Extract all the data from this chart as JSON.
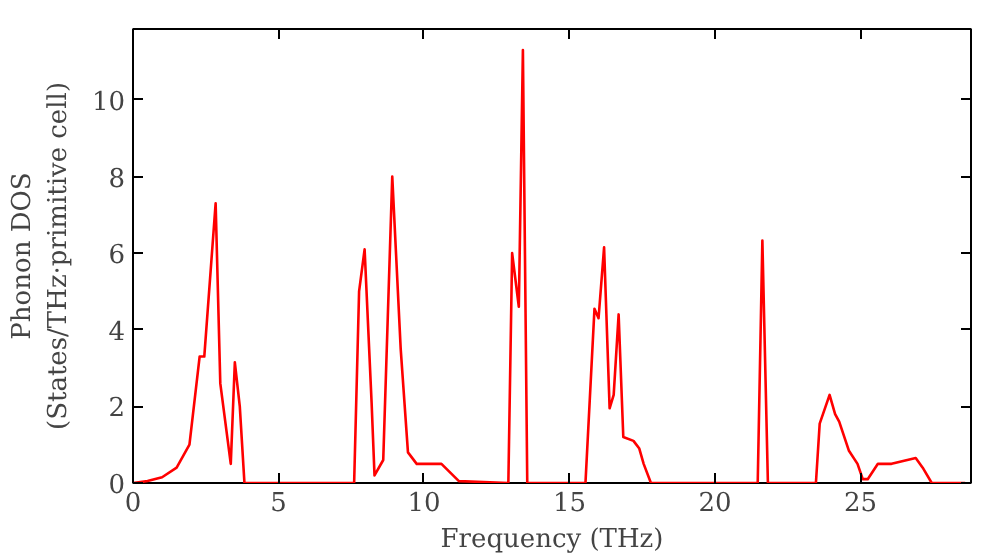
{
  "chart_data": {
    "type": "line",
    "xlabel": "Frequency (THz)",
    "ylabel": "Phonon DOS\n(States/THz·primitive cell)",
    "xlim": [
      0,
      28.8
    ],
    "ylim": [
      0,
      11.85
    ],
    "xticks": [
      0,
      5,
      10,
      15,
      20,
      25
    ],
    "yticks": [
      0,
      2,
      4,
      6,
      8,
      10
    ],
    "grid": false,
    "line_style": "solid",
    "series": [
      {
        "color": "#ff0000",
        "x": [
          0,
          0.5,
          1.0,
          1.5,
          1.94,
          2.29,
          2.45,
          2.84,
          3.0,
          3.36,
          3.5,
          3.67,
          3.83,
          7.6,
          7.77,
          7.96,
          8.2,
          8.3,
          8.6,
          8.91,
          9.2,
          9.45,
          9.75,
          10.6,
          11.2,
          12.9,
          13.03,
          13.26,
          13.4,
          13.55,
          15.55,
          15.86,
          16.0,
          16.19,
          16.38,
          16.52,
          16.69,
          16.85,
          17.2,
          17.4,
          17.55,
          17.8,
          21.47,
          21.63,
          21.82,
          23.47,
          23.6,
          23.94,
          24.13,
          24.27,
          24.6,
          24.9,
          25.08,
          25.25,
          25.6,
          26.07,
          26.9,
          27.14,
          27.45,
          28.6
        ],
        "values": [
          0,
          0.05,
          0.15,
          0.4,
          1.0,
          3.3,
          3.3,
          7.3,
          2.6,
          0.5,
          3.15,
          2.0,
          0,
          0,
          5.0,
          6.1,
          2.1,
          0.2,
          0.6,
          8.0,
          3.5,
          0.8,
          0.5,
          0.5,
          0.05,
          0,
          6.0,
          4.6,
          11.3,
          0,
          0,
          4.55,
          4.3,
          6.15,
          1.95,
          2.3,
          4.4,
          1.2,
          1.1,
          0.9,
          0.5,
          0,
          0,
          6.33,
          0,
          0,
          1.55,
          2.3,
          1.8,
          1.6,
          0.85,
          0.5,
          0.1,
          0.1,
          0.5,
          0.5,
          0.65,
          0.4,
          0,
          0
        ]
      }
    ]
  }
}
